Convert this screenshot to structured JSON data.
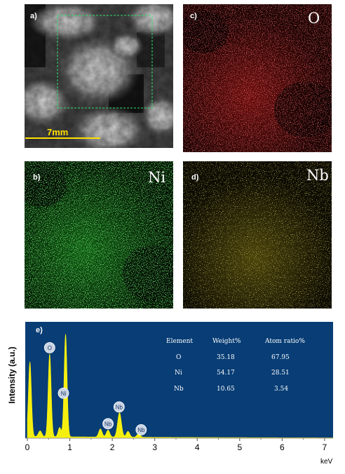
{
  "colors": {
    "o_map": "#d42020",
    "ni_map": "#27c52a",
    "nb_map": "#c8bd2a",
    "spectrum_bg": "#083d75",
    "spectrum_fill": "#f5ef10",
    "scale_bar": "#ffe000",
    "roi_box": "#2fe06a"
  },
  "panels": {
    "a": {
      "label": "a)",
      "scale_bar_text": "7mm"
    },
    "b": {
      "label": "b)",
      "element": "Ni"
    },
    "c": {
      "label": "c)",
      "element": "O"
    },
    "d": {
      "label": "d)",
      "element": "Nb"
    }
  },
  "spectrum": {
    "label": "e)",
    "ylabel": "Intensity (a.u.)",
    "xunit": "keV",
    "xticks": [
      "0",
      "1",
      "2",
      "3",
      "4",
      "5",
      "6",
      "7"
    ],
    "table": {
      "headers": [
        "Element",
        "Weight%",
        "Atom ratio%"
      ],
      "rows": [
        [
          "O",
          "35.18",
          "67.95"
        ],
        [
          "Ni",
          "54.17",
          "28.51"
        ],
        [
          "Nb",
          "10.65",
          "3.54"
        ]
      ]
    },
    "peak_markers": [
      {
        "text": "O",
        "x": 0.525
      },
      {
        "text": "Ni",
        "x": 0.85
      },
      {
        "text": "Nb",
        "x": 1.9
      },
      {
        "text": "Nb",
        "x": 2.16
      },
      {
        "text": "Nb",
        "x": 2.68
      }
    ]
  },
  "chart_data": {
    "type": "area",
    "xlabel": "keV",
    "ylabel": "Intensity (a.u.)",
    "xlim": [
      -0.05,
      7.2
    ],
    "ylim": [
      0,
      1
    ],
    "x_ticks": [
      0,
      1,
      2,
      3,
      4,
      5,
      6,
      7
    ],
    "peaks": [
      {
        "x": 0.06,
        "height": 0.64,
        "width": 0.035
      },
      {
        "x": 0.3,
        "height": 0.05,
        "width": 0.04
      },
      {
        "x": 0.525,
        "height": 0.71,
        "width": 0.035
      },
      {
        "x": 0.76,
        "height": 0.08,
        "width": 0.035
      },
      {
        "x": 0.9,
        "height": 0.88,
        "width": 0.035
      },
      {
        "x": 1.72,
        "height": 0.07,
        "width": 0.04
      },
      {
        "x": 1.9,
        "height": 0.06,
        "width": 0.04
      },
      {
        "x": 2.17,
        "height": 0.21,
        "width": 0.045
      },
      {
        "x": 2.37,
        "height": 0.05,
        "width": 0.04
      },
      {
        "x": 2.62,
        "height": 0.03,
        "width": 0.04
      }
    ],
    "background_level": 0.015,
    "grid": false,
    "legend": "none"
  }
}
